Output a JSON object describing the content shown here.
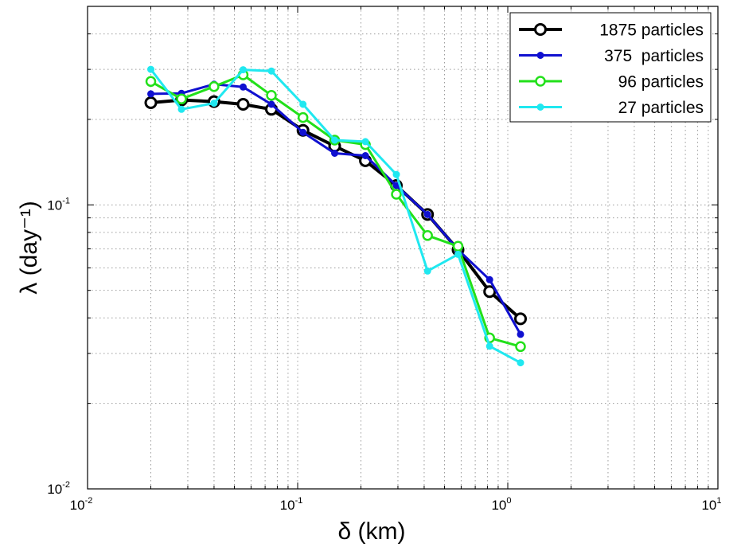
{
  "chart_data": {
    "type": "line",
    "title": "",
    "xlabel": "δ (km)",
    "ylabel": "λ (day⁻¹)",
    "x_scale": "log",
    "y_scale": "log",
    "xlim": [
      0.01,
      10
    ],
    "ylim": [
      0.01,
      0.5
    ],
    "grid": true,
    "legend_position": "top-right",
    "x_ticks": [
      {
        "value": 0.01,
        "base": "10",
        "exp": "-2"
      },
      {
        "value": 0.1,
        "base": "10",
        "exp": "-1"
      },
      {
        "value": 1,
        "base": "10",
        "exp": "0"
      },
      {
        "value": 10,
        "base": "10",
        "exp": "1"
      }
    ],
    "y_ticks": [
      {
        "value": 0.01,
        "base": "10",
        "exp": "-2"
      },
      {
        "value": 0.1,
        "base": "10",
        "exp": "-1"
      }
    ],
    "series": [
      {
        "name": "1875 particles",
        "color": "#000000",
        "marker": "open-circle-large",
        "x": [
          0.02,
          0.028,
          0.04,
          0.055,
          0.075,
          0.106,
          0.15,
          0.21,
          0.295,
          0.415,
          0.58,
          0.82,
          1.15
        ],
        "y": [
          0.229,
          0.234,
          0.231,
          0.226,
          0.217,
          0.183,
          0.161,
          0.143,
          0.117,
          0.0925,
          0.0695,
          0.0495,
          0.0397
        ]
      },
      {
        "name": "375  particles",
        "color": "#1010d0",
        "marker": "dot-small",
        "x": [
          0.02,
          0.028,
          0.04,
          0.055,
          0.075,
          0.106,
          0.15,
          0.21,
          0.295,
          0.415,
          0.58,
          0.82,
          1.15
        ],
        "y": [
          0.246,
          0.247,
          0.266,
          0.26,
          0.226,
          0.18,
          0.152,
          0.149,
          0.117,
          0.0925,
          0.0695,
          0.0545,
          0.035
        ]
      },
      {
        "name": "96 particles",
        "color": "#22e01a",
        "marker": "open-circle",
        "x": [
          0.02,
          0.028,
          0.04,
          0.055,
          0.075,
          0.106,
          0.15,
          0.21,
          0.295,
          0.415,
          0.58,
          0.82,
          1.15
        ],
        "y": [
          0.272,
          0.236,
          0.261,
          0.287,
          0.243,
          0.203,
          0.169,
          0.163,
          0.109,
          0.078,
          0.0715,
          0.034,
          0.0317
        ]
      },
      {
        "name": "27 particles",
        "color": "#20e8f0",
        "marker": "dot-small",
        "x": [
          0.02,
          0.028,
          0.04,
          0.055,
          0.075,
          0.106,
          0.15,
          0.21,
          0.295,
          0.415,
          0.58,
          0.82,
          1.15
        ],
        "y": [
          0.3,
          0.217,
          0.228,
          0.299,
          0.296,
          0.226,
          0.169,
          0.167,
          0.128,
          0.0585,
          0.067,
          0.0318,
          0.0278
        ]
      }
    ]
  }
}
